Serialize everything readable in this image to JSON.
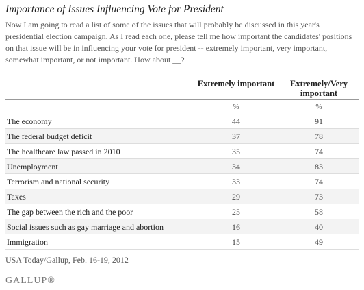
{
  "title": "Importance of Issues Influencing Vote for President",
  "question": "Now I am going to read a list of some of the issues that will probably be discussed in this year's presidential election campaign. As I read each one, please tell me how important the candidates' positions on that issue will be in influencing your vote for president -- extremely important, very important, somewhat important, or not important.  How about __?",
  "table": {
    "headers": [
      "Extremely important",
      "Extremely/Very important"
    ],
    "units": [
      "%",
      "%"
    ],
    "rows": [
      [
        "The economy",
        44,
        91
      ],
      [
        "The federal budget deficit",
        37,
        78
      ],
      [
        "The healthcare law passed in 2010",
        35,
        74
      ],
      [
        "Unemployment",
        34,
        83
      ],
      [
        "Terrorism and national security",
        33,
        74
      ],
      [
        "Taxes",
        29,
        73
      ],
      [
        "The gap between the rich and the poor",
        25,
        58
      ],
      [
        "Social issues such as gay marriage and abortion",
        16,
        40
      ],
      [
        "Immigration",
        15,
        49
      ]
    ]
  },
  "source": "USA Today/Gallup, Feb. 16-19, 2012",
  "logo": "GALLUP®"
}
